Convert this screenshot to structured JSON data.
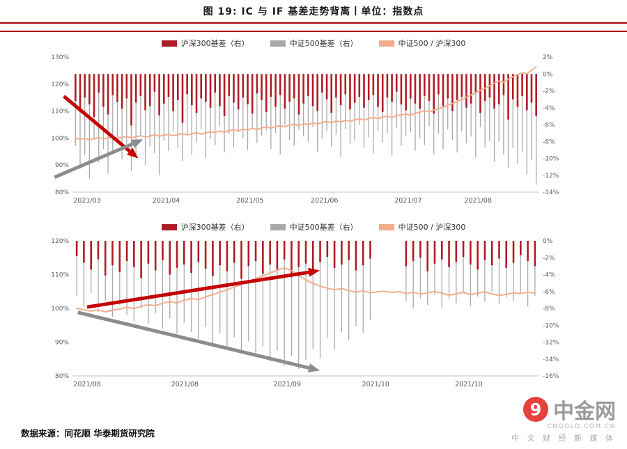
{
  "header": {
    "title": "图 19: IC 与 IF 基差走势背离丨单位：指数点"
  },
  "footer": {
    "source": "数据来源：同花顺  华泰期货研究院"
  },
  "watermark": {
    "brand": "中金网",
    "domain": "CNGOLD.COM.CN",
    "tagline": "中 文 财 经 新 媒 体",
    "logo_glyph": "9"
  },
  "colors": {
    "red_bar": "#b01c24",
    "gray_bar": "#a9a9a9",
    "line": "#f4ac8e",
    "arrow_red": "#c40000",
    "arrow_gray": "#8c8c8c",
    "rule": "#b00000",
    "tick": "#595959",
    "axis": "#c0c0c0",
    "logo_red": "#e6413c"
  },
  "chart_data": [
    {
      "type": "bar+line",
      "legend": [
        "沪深300基差（右）",
        "中证500基差（右）",
        "中证500 / 沪深300"
      ],
      "left_axis": {
        "min": 80,
        "max": 130,
        "ticks": [
          130,
          120,
          110,
          100,
          90,
          80
        ]
      },
      "right_axis": {
        "min": -14,
        "max": 2,
        "ticks": [
          2,
          0,
          -2,
          -4,
          -6,
          -8,
          -10,
          -12,
          -14
        ]
      },
      "x_labels": [
        {
          "label": "2021/03",
          "pos": 0.03
        },
        {
          "label": "2021/04",
          "pos": 0.2
        },
        {
          "label": "2021/05",
          "pos": 0.38
        },
        {
          "label": "2021/06",
          "pos": 0.54
        },
        {
          "label": "2021/07",
          "pos": 0.72
        },
        {
          "label": "2021/08",
          "pos": 0.87
        }
      ],
      "series": {
        "red": [
          -3.2,
          -4.5,
          -2.8,
          -3.6,
          -5.1,
          -2.2,
          -3.9,
          -4.8,
          -2.5,
          -3.3,
          -4.1,
          -2.9,
          -6.1,
          -3.4,
          -2.6,
          -4.3,
          -3.8,
          -2.1,
          -4.9,
          -3.5,
          -2.7,
          -4.4,
          -3.1,
          -5.8,
          -2.4,
          -3.7,
          -4.6,
          -2.9,
          -3.3,
          -4.0,
          -2.2,
          -3.8,
          -5.0,
          -2.6,
          -3.4,
          -4.2,
          -2.8,
          -3.6,
          -4.7,
          -2.3,
          -3.1,
          -4.5,
          -2.7,
          -3.9,
          -2.5,
          -4.1,
          -3.3,
          -2.9,
          -4.8,
          -3.5,
          -2.6,
          -3.8,
          -4.4,
          -2.2,
          -3.0,
          -4.6,
          -2.8,
          -3.7,
          -2.4,
          -4.2,
          -3.4,
          -2.7,
          -4.0,
          -3.1,
          -2.5,
          -3.9,
          -4.5,
          -2.8,
          -3.3,
          -2.1,
          -3.6,
          -4.3,
          -2.9,
          -3.5,
          -4.1,
          -2.6,
          -3.2,
          -4.7,
          -2.4,
          -3.8,
          -2.9,
          -4.4,
          -3.1,
          -2.7,
          -4.0,
          -3.5,
          -2.3,
          -4.6,
          -3.2,
          -2.8,
          -4.1,
          -3.6,
          -2.5,
          -5.4,
          -3.0,
          -3.9,
          -2.6,
          -4.3,
          -3.4,
          -5.0
        ],
        "gray": [
          -8.5,
          -11.2,
          -9.6,
          -12.4,
          -7.8,
          -10.5,
          -8.9,
          -11.8,
          -9.2,
          -7.5,
          -10.1,
          -8.3,
          -11.5,
          -9.8,
          -7.2,
          -10.8,
          -8.6,
          -9.4,
          -12.0,
          -7.9,
          -9.1,
          -6.8,
          -8.8,
          -10.3,
          -7.4,
          -9.6,
          -8.1,
          -6.5,
          -9.9,
          -7.7,
          -8.4,
          -6.2,
          -9.3,
          -7.1,
          -8.7,
          -6.9,
          -7.6,
          -9.0,
          -6.4,
          -8.2,
          -7.3,
          -6.7,
          -8.9,
          -7.0,
          -9.5,
          -6.1,
          -7.8,
          -8.5,
          -6.6,
          -7.4,
          -8.0,
          -6.3,
          -9.2,
          -7.7,
          -6.8,
          -8.6,
          -7.2,
          -9.8,
          -6.5,
          -8.3,
          -7.9,
          -6.0,
          -8.8,
          -7.5,
          -9.4,
          -6.7,
          -8.1,
          -7.0,
          -9.7,
          -6.4,
          -8.5,
          -7.3,
          -6.9,
          -9.1,
          -7.6,
          -8.4,
          -6.2,
          -9.5,
          -7.1,
          -8.9,
          -6.6,
          -7.8,
          -9.3,
          -6.8,
          -8.2,
          -7.4,
          -9.9,
          -6.3,
          -8.7,
          -7.9,
          -10.4,
          -8.0,
          -9.6,
          -11.1,
          -8.8,
          -10.7,
          -9.2,
          -11.9,
          -10.2,
          -13.1
        ],
        "line": [
          100.0,
          99.6,
          99.9,
          99.4,
          99.8,
          100.2,
          99.7,
          100.1,
          100.4,
          99.9,
          100.3,
          100.6,
          100.1,
          100.5,
          100.9,
          100.4,
          100.8,
          101.2,
          100.7,
          101.1,
          101.4,
          100.9,
          101.3,
          101.7,
          101.2,
          101.6,
          102.0,
          101.5,
          101.9,
          102.3,
          102.1,
          102.6,
          102.2,
          102.8,
          103.1,
          102.7,
          103.3,
          103.0,
          103.6,
          103.2,
          103.8,
          104.1,
          103.7,
          104.3,
          104.6,
          104.2,
          104.8,
          105.1,
          104.7,
          105.3,
          105.0,
          105.6,
          105.2,
          105.8,
          106.1,
          105.7,
          106.3,
          106.0,
          106.6,
          106.2,
          106.8,
          107.1,
          106.7,
          107.3,
          107.6,
          107.2,
          107.8,
          108.1,
          107.7,
          108.3,
          108.6,
          108.9,
          108.5,
          109.2,
          109.6,
          110.1,
          109.7,
          110.4,
          110.9,
          111.5,
          112.1,
          112.8,
          113.5,
          114.3,
          115.1,
          116.0,
          116.8,
          117.7,
          118.5,
          119.4,
          120.2,
          121.1,
          120.6,
          121.8,
          122.7,
          123.5,
          124.2,
          123.8,
          125.1,
          126.4
        ]
      },
      "arrows": [
        {
          "color": "arrow_red",
          "x1": -0.02,
          "y1": 0.29,
          "x2": 0.14,
          "y2": 0.75
        },
        {
          "color": "arrow_gray",
          "x1": -0.04,
          "y1": 0.89,
          "x2": 0.15,
          "y2": 0.61
        }
      ]
    },
    {
      "type": "bar+line",
      "legend": [
        "沪深300基差（右）",
        "中证500基差（右）",
        "中证500 / 沪深300"
      ],
      "left_axis": {
        "min": 80,
        "max": 120,
        "ticks": [
          120,
          110,
          100,
          90,
          80
        ]
      },
      "right_axis": {
        "min": -16,
        "max": 0,
        "ticks": [
          0,
          -2,
          -4,
          -6,
          -8,
          -10,
          -12,
          -14,
          -16
        ]
      },
      "x_labels": [
        {
          "label": "2021/08",
          "pos": 0.03
        },
        {
          "label": "2021/08",
          "pos": 0.24
        },
        {
          "label": "2021/09",
          "pos": 0.46
        },
        {
          "label": "2021/10",
          "pos": 0.65
        },
        {
          "label": "2021/10",
          "pos": 0.85
        }
      ],
      "series": {
        "red": [
          -1.8,
          -2.6,
          -3.4,
          -2.2,
          -4.1,
          -2.9,
          -3.7,
          -2.4,
          -3.1,
          -4.4,
          -2.7,
          -3.5,
          -2.3,
          -4.0,
          -3.2,
          -2.8,
          -3.8,
          -2.5,
          -3.3,
          -4.2,
          -2.9,
          -3.6,
          -2.6,
          -4.5,
          -3.0,
          -2.4,
          -3.9,
          -2.8,
          -3.4,
          -2.2,
          -4.3,
          -3.1,
          -2.7,
          -3.7,
          -2.5,
          -1.9,
          -3.2,
          -2.8,
          -2.3,
          -3.5,
          -2.9,
          -2.1,
          null,
          null,
          null,
          null,
          -3.0,
          -2.4,
          -2.0,
          -3.6,
          -2.7,
          -2.2,
          -3.1,
          -2.5,
          -1.9,
          -2.8,
          -3.4,
          -2.3,
          -2.9,
          -2.1,
          -3.2,
          -2.6,
          -1.7,
          -2.4,
          -3.0
        ],
        "gray": [
          -6.5,
          -7.8,
          -6.2,
          -8.4,
          -7.1,
          -9.0,
          -7.6,
          -8.8,
          -9.5,
          -8.1,
          -9.8,
          -8.6,
          -10.4,
          -9.2,
          -11.0,
          -9.7,
          -10.8,
          -11.6,
          -10.2,
          -12.1,
          -10.9,
          -12.6,
          -11.4,
          -13.2,
          -11.9,
          -13.8,
          -12.5,
          -14.3,
          -13.0,
          -14.8,
          -13.6,
          -15.2,
          -14.1,
          -12.8,
          -13.9,
          -11.5,
          -12.9,
          -10.8,
          -11.8,
          -10.1,
          -10.9,
          -9.4,
          null,
          null,
          null,
          null,
          -7.2,
          -8.0,
          -6.8,
          -7.6,
          -6.4,
          -7.9,
          -6.9,
          -7.4,
          -6.2,
          -7.7,
          -6.6,
          -7.2,
          -6.0,
          -7.5,
          -6.7,
          -7.1,
          -6.3,
          -7.8,
          -6.5
        ],
        "line": [
          100.0,
          99.6,
          99.2,
          99.5,
          99.0,
          99.4,
          99.8,
          100.3,
          100.0,
          100.6,
          101.1,
          100.8,
          101.5,
          102.0,
          101.6,
          102.4,
          103.0,
          102.6,
          103.4,
          104.1,
          104.8,
          105.5,
          106.3,
          107.1,
          107.9,
          108.8,
          109.6,
          110.5,
          111.3,
          112.0,
          111.2,
          109.8,
          108.5,
          107.4,
          106.6,
          106.0,
          105.5,
          105.9,
          105.3,
          104.8,
          105.2,
          104.6,
          104.9,
          105.1,
          104.7,
          105.0,
          104.4,
          104.8,
          104.2,
          104.6,
          105.0,
          104.5,
          103.9,
          104.3,
          104.7,
          104.1,
          104.5,
          104.9,
          104.3,
          103.8,
          104.2,
          104.6,
          104.4,
          104.8,
          104.5
        ]
      },
      "arrows": [
        {
          "color": "arrow_red",
          "x1": 0.03,
          "y1": 0.49,
          "x2": 0.53,
          "y2": 0.22
        },
        {
          "color": "arrow_gray",
          "x1": 0.01,
          "y1": 0.53,
          "x2": 0.53,
          "y2": 0.96
        }
      ]
    }
  ]
}
